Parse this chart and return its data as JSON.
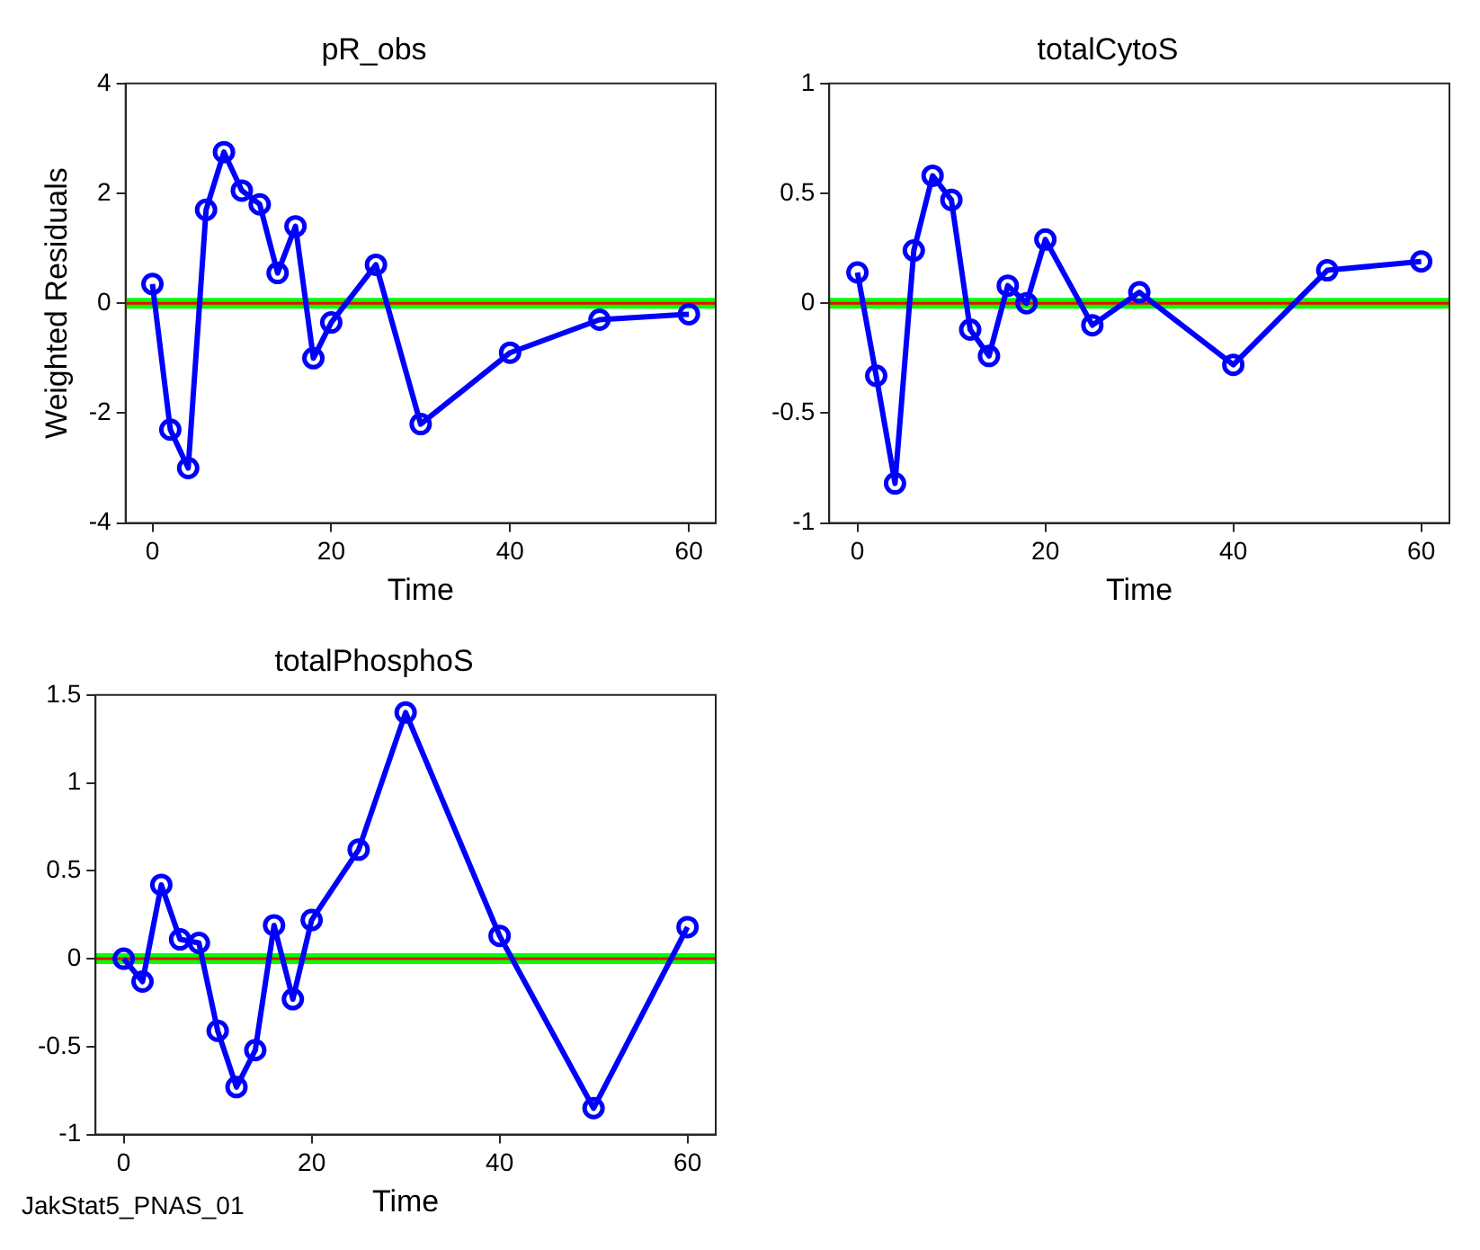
{
  "chart_data": [
    {
      "type": "line",
      "title": "pR_obs",
      "xlabel": "Time",
      "ylabel": "Weighted Residuals",
      "x": [
        0,
        2,
        4,
        6,
        8,
        10,
        12,
        14,
        16,
        18,
        20,
        25,
        30,
        40,
        50,
        60
      ],
      "series": [
        {
          "color": "#0000ff",
          "values": [
            0.35,
            -2.3,
            -3.0,
            1.7,
            2.75,
            2.05,
            1.8,
            0.55,
            1.4,
            -1.0,
            -0.35,
            0.7,
            -2.2,
            -0.9,
            -0.3,
            -0.2
          ]
        }
      ],
      "xlim": [
        -3,
        63
      ],
      "xticks": [
        0,
        20,
        40,
        60
      ],
      "ylim": [
        -4,
        4
      ],
      "yticks": [
        -4,
        -2,
        0,
        2,
        4
      ],
      "marker": "circle",
      "grid": false,
      "ref_lines": [
        {
          "axis": "y",
          "value": 0,
          "color": "#00ff00"
        },
        {
          "axis": "y",
          "value": 0,
          "color": "#ff0000"
        }
      ]
    },
    {
      "type": "line",
      "title": "totalCytoS",
      "xlabel": "Time",
      "x": [
        0,
        2,
        4,
        6,
        8,
        10,
        12,
        14,
        16,
        18,
        20,
        25,
        30,
        40,
        50,
        60
      ],
      "series": [
        {
          "color": "#0000ff",
          "values": [
            0.14,
            -0.33,
            -0.82,
            0.24,
            0.58,
            0.47,
            -0.12,
            -0.24,
            0.08,
            0.0,
            0.29,
            -0.1,
            0.05,
            -0.28,
            0.15,
            0.19
          ]
        }
      ],
      "xlim": [
        -3,
        63
      ],
      "xticks": [
        0,
        20,
        40,
        60
      ],
      "ylim": [
        -1,
        1
      ],
      "yticks": [
        -1,
        -0.5,
        0,
        0.5,
        1
      ],
      "marker": "circle",
      "grid": false,
      "ref_lines": [
        {
          "axis": "y",
          "value": 0,
          "color": "#00ff00"
        },
        {
          "axis": "y",
          "value": 0,
          "color": "#ff0000"
        }
      ]
    },
    {
      "type": "line",
      "title": "totalPhosphoS",
      "xlabel": "Time",
      "x": [
        0,
        2,
        4,
        6,
        8,
        10,
        12,
        14,
        16,
        18,
        20,
        25,
        30,
        40,
        50,
        60
      ],
      "series": [
        {
          "color": "#0000ff",
          "values": [
            0.0,
            -0.13,
            0.42,
            0.11,
            0.09,
            -0.41,
            -0.73,
            -0.52,
            0.19,
            -0.23,
            0.22,
            0.62,
            1.4,
            0.13,
            -0.85,
            0.18
          ]
        }
      ],
      "xlim": [
        -3,
        63
      ],
      "xticks": [
        0,
        20,
        40,
        60
      ],
      "ylim": [
        -1,
        1.5
      ],
      "yticks": [
        -1,
        -0.5,
        0,
        0.5,
        1,
        1.5
      ],
      "marker": "circle",
      "grid": false,
      "ref_lines": [
        {
          "axis": "y",
          "value": 0,
          "color": "#00ff00"
        },
        {
          "axis": "y",
          "value": 0,
          "color": "#ff0000"
        }
      ],
      "annotations": [
        "JakStat5_PNAS_01"
      ]
    }
  ]
}
